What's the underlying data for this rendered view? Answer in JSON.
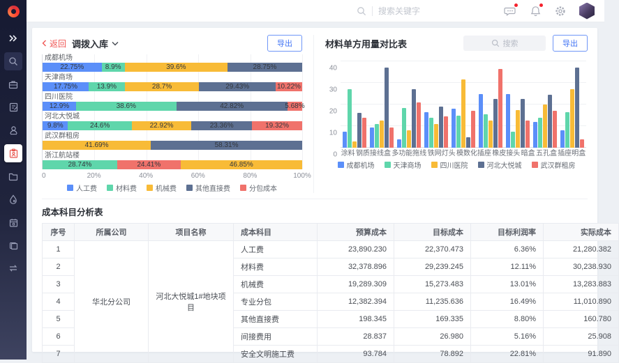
{
  "header": {
    "search_placeholder": "搜索关键字",
    "icons": [
      "message-icon",
      "bell-icon",
      "gear-icon",
      "avatar"
    ]
  },
  "sidebar": {
    "items": [
      {
        "name": "expand-icon"
      },
      {
        "name": "search-icon",
        "bg": true
      },
      {
        "name": "briefcase-icon"
      },
      {
        "name": "edit-doc-icon"
      },
      {
        "name": "user-stamp-icon"
      },
      {
        "name": "clipboard-icon",
        "active": true
      },
      {
        "name": "folder-icon"
      },
      {
        "name": "droplet-icon"
      },
      {
        "name": "calendar-icon"
      },
      {
        "name": "copy-icon"
      },
      {
        "name": "transfer-icon"
      }
    ]
  },
  "left_panel": {
    "back_label": "返回",
    "title": "调拨入库",
    "export_label": "导出"
  },
  "right_panel": {
    "title": "材料单方用量对比表",
    "search_placeholder": "搜索",
    "export_label": "导出"
  },
  "palette": {
    "blue": "#5B8FF9",
    "green": "#5FD6AB",
    "yellow": "#F8BB37",
    "slate": "#5D7092",
    "red": "#F0726B"
  },
  "chart_data": [
    {
      "type": "stacked-bar-horizontal",
      "title": "调拨入库",
      "x_ticks": [
        "0",
        "20%",
        "40%",
        "60%",
        "80%",
        "100%"
      ],
      "xlim": [
        0,
        100
      ],
      "legend": [
        {
          "name": "人工费",
          "color": "blue"
        },
        {
          "name": "材料费",
          "color": "green"
        },
        {
          "name": "机械费",
          "color": "yellow"
        },
        {
          "name": "其他直接费",
          "color": "slate"
        },
        {
          "name": "分包成本",
          "color": "red"
        }
      ],
      "rows": [
        {
          "label": "成都机场",
          "segments": [
            {
              "series": "人工费",
              "value": 22.75,
              "color": "blue"
            },
            {
              "series": "材料费",
              "value": 8.9,
              "color": "green"
            },
            {
              "series": "机械费",
              "value": 39.6,
              "color": "yellow"
            },
            {
              "series": "其他直接费",
              "value": 28.75,
              "color": "slate"
            }
          ]
        },
        {
          "label": "天津商场",
          "segments": [
            {
              "series": "人工费",
              "value": 17.75,
              "color": "blue"
            },
            {
              "series": "材料费",
              "value": 13.9,
              "color": "green"
            },
            {
              "series": "机械费",
              "value": 28.7,
              "color": "yellow"
            },
            {
              "series": "其他直接费",
              "value": 29.43,
              "color": "slate"
            },
            {
              "series": "分包成本",
              "value": 10.22,
              "color": "red"
            }
          ]
        },
        {
          "label": "四川医院",
          "segments": [
            {
              "series": "人工费",
              "value": 12.9,
              "color": "blue"
            },
            {
              "series": "材料费",
              "value": 38.6,
              "color": "green"
            },
            {
              "series": "其他直接费",
              "value": 42.82,
              "color": "slate"
            },
            {
              "series": "分包成本",
              "value": 5.68,
              "color": "red"
            }
          ]
        },
        {
          "label": "河北大悦城",
          "segments": [
            {
              "series": "人工费",
              "value": 9.8,
              "color": "blue"
            },
            {
              "series": "材料费",
              "value": 24.6,
              "color": "green"
            },
            {
              "series": "机械费",
              "value": 22.92,
              "color": "yellow"
            },
            {
              "series": "其他直接费",
              "value": 23.36,
              "color": "slate"
            },
            {
              "series": "分包成本",
              "value": 19.32,
              "color": "red"
            }
          ]
        },
        {
          "label": "武汉群租房",
          "segments": [
            {
              "series": "机械费",
              "value": 41.69,
              "color": "yellow"
            },
            {
              "series": "其他直接费",
              "value": 58.31,
              "color": "slate"
            }
          ]
        },
        {
          "label": "浙江航站楼",
          "segments": [
            {
              "series": "材料费",
              "value": 28.74,
              "color": "green"
            },
            {
              "series": "分包成本",
              "value": 24.41,
              "color": "red"
            },
            {
              "series": "机械费",
              "value": 46.85,
              "color": "yellow"
            }
          ]
        }
      ]
    },
    {
      "type": "bar",
      "title": "材料单方用量对比表",
      "categories": [
        "涂料",
        "钢质接线盒",
        "多功能拖线",
        "铁网灯头",
        "模数化插座",
        "橡皮接头",
        "暗盒",
        "五孔盒",
        "插座明盒"
      ],
      "y_ticks": [
        0,
        10,
        20,
        30,
        40
      ],
      "ylim": [
        0,
        40
      ],
      "series": [
        {
          "name": "成都机场",
          "color": "blue",
          "values": [
            7.5,
            9.5,
            4,
            16.5,
            18,
            25,
            25,
            12,
            8
          ]
        },
        {
          "name": "天津商场",
          "color": "green",
          "values": [
            27,
            11,
            18.5,
            14,
            15,
            15.5,
            7.5,
            14,
            16.5
          ]
        },
        {
          "name": "四川医院",
          "color": "yellow",
          "values": [
            3,
            12.5,
            8,
            11,
            31.5,
            12.5,
            17.5,
            20,
            27
          ]
        },
        {
          "name": "河北大悦城",
          "color": "slate",
          "values": [
            16,
            37,
            27,
            19,
            5,
            22.5,
            22.5,
            24.5,
            37
          ]
        },
        {
          "name": "武汉群租房",
          "color": "red",
          "values": [
            14,
            9.5,
            21,
            14.5,
            17,
            36.5,
            12.5,
            17,
            4
          ]
        }
      ]
    }
  ],
  "table": {
    "title": "成本科目分析表",
    "columns": [
      "序号",
      "所属公司",
      "项目名称",
      "成本科目",
      "预算成本",
      "目标成本",
      "目标利润率",
      "实际成本"
    ],
    "company": "华北分公司",
    "project": "河北大悦城1#地块项目",
    "rows": [
      {
        "no": "1",
        "subject": "人工费",
        "budget": "23,890.230",
        "target": "22,370.473",
        "rate": "6.36%",
        "actual": "21,280.382"
      },
      {
        "no": "2",
        "subject": "材料费",
        "budget": "32,378.896",
        "target": "29,239.245",
        "rate": "12.11%",
        "actual": "30,238.930"
      },
      {
        "no": "3",
        "subject": "机械费",
        "budget": "19,289.309",
        "target": "15,273.483",
        "rate": "13.01%",
        "actual": "13,283.883"
      },
      {
        "no": "4",
        "subject": "专业分包",
        "budget": "12,382.394",
        "target": "11,235.636",
        "rate": "16.49%",
        "actual": "11,010.890"
      },
      {
        "no": "5",
        "subject": "其他直接费",
        "budget": "198.345",
        "target": "169.335",
        "rate": "8.80%",
        "actual": "160.780"
      },
      {
        "no": "6",
        "subject": "间接费用",
        "budget": "28.837",
        "target": "26.980",
        "rate": "5.16%",
        "actual": "25.908"
      },
      {
        "no": "7",
        "subject": "安全文明施工费",
        "budget": "93.784",
        "target": "78.892",
        "rate": "22.81%",
        "actual": "91.890"
      }
    ]
  }
}
